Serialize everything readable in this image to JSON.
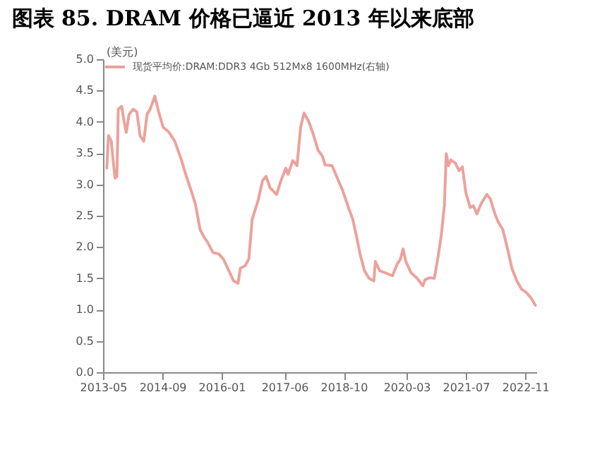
{
  "chart_data": {
    "type": "line",
    "title": "图表 85. DRAM 价格已逼近 2013 年以来底部",
    "ylabel": "(美元)",
    "x": [
      "2013-06-01",
      "2013-06-15",
      "2013-07-08",
      "2013-07-23",
      "2013-08-08",
      "2013-08-23",
      "2013-09-03",
      "2013-10-01",
      "2013-10-18",
      "2013-11-08",
      "2013-12-01",
      "2014-01-03",
      "2014-02-03",
      "2014-03-01",
      "2014-04-01",
      "2014-04-28",
      "2014-05-23",
      "2014-07-01",
      "2014-08-01",
      "2014-09-08",
      "2014-10-23",
      "2014-12-12",
      "2015-02-01",
      "2015-03-15",
      "2015-05-01",
      "2015-06-01",
      "2015-07-08",
      "2015-08-08",
      "2015-09-03",
      "2015-10-23",
      "2015-12-08",
      "2016-01-15",
      "2016-03-01",
      "2016-04-08",
      "2016-05-15",
      "2016-06-03",
      "2016-07-12",
      "2016-08-12",
      "2016-09-08",
      "2016-10-28",
      "2016-12-03",
      "2017-01-01",
      "2017-02-01",
      "2017-03-28",
      "2017-05-03",
      "2017-06-12",
      "2017-07-01",
      "2017-08-08",
      "2017-09-12",
      "2017-10-12",
      "2017-11-09",
      "2017-12-18",
      "2018-01-24",
      "2018-03-03",
      "2018-04-09",
      "2018-05-01",
      "2018-06-27",
      "2018-08-03",
      "2018-09-21",
      "2018-11-09",
      "2018-12-15",
      "2019-01-15",
      "2019-02-12",
      "2019-03-21",
      "2019-04-27",
      "2019-06-06",
      "2019-06-18",
      "2019-07-24",
      "2019-09-18",
      "2019-11-06",
      "2019-12-15",
      "2020-01-09",
      "2020-02-01",
      "2020-02-24",
      "2020-04-06",
      "2020-05-27",
      "2020-07-12",
      "2020-08-01",
      "2020-09-09",
      "2020-10-15",
      "2020-11-15",
      "2020-12-12",
      "2021-01-06",
      "2021-01-21",
      "2021-02-09",
      "2021-02-27",
      "2021-04-06",
      "2021-05-06",
      "2021-06-03",
      "2021-07-01",
      "2021-08-06",
      "2021-09-01",
      "2021-10-01",
      "2021-11-03",
      "2021-12-21",
      "2022-01-18",
      "2022-02-27",
      "2022-03-24",
      "2022-05-01",
      "2022-06-09",
      "2022-07-15",
      "2022-08-24",
      "2022-10-01",
      "2022-11-12",
      "2022-12-18",
      "2023-01-24"
    ],
    "series": [
      {
        "name": "现货平均价:DRAM:DDR3 4Gb 512Mx8 1600MHz(右轴)",
        "color": "#eba29c",
        "values": [
          3.26,
          3.78,
          3.69,
          3.38,
          3.1,
          3.13,
          4.2,
          4.25,
          4.04,
          3.83,
          4.12,
          4.2,
          4.16,
          3.78,
          3.69,
          4.12,
          4.2,
          4.41,
          4.16,
          3.91,
          3.84,
          3.69,
          3.41,
          3.14,
          2.87,
          2.67,
          2.28,
          2.16,
          2.09,
          1.91,
          1.89,
          1.81,
          1.62,
          1.46,
          1.42,
          1.66,
          1.7,
          1.81,
          2.44,
          2.75,
          3.06,
          3.13,
          2.95,
          2.84,
          3.06,
          3.26,
          3.16,
          3.38,
          3.3,
          3.92,
          4.14,
          4.0,
          3.8,
          3.55,
          3.45,
          3.31,
          3.3,
          3.13,
          2.91,
          2.63,
          2.44,
          2.16,
          1.89,
          1.62,
          1.5,
          1.46,
          1.77,
          1.62,
          1.58,
          1.54,
          1.73,
          1.8,
          1.97,
          1.77,
          1.59,
          1.5,
          1.38,
          1.48,
          1.51,
          1.5,
          1.85,
          2.2,
          2.67,
          3.49,
          3.3,
          3.39,
          3.34,
          3.22,
          3.28,
          2.87,
          2.63,
          2.66,
          2.53,
          2.69,
          2.84,
          2.77,
          2.52,
          2.4,
          2.28,
          1.97,
          1.66,
          1.46,
          1.33,
          1.27,
          1.19,
          1.07
        ]
      }
    ],
    "xlim": [
      "2013-05-01",
      "2023-02-01"
    ],
    "xticks": [
      "2013-05",
      "2014-09",
      "2016-01",
      "2017-06",
      "2018-10",
      "2020-03",
      "2021-07",
      "2022-11"
    ],
    "ylim": [
      0,
      5
    ],
    "yticks": [
      {
        "value": 0,
        "label": "0.0"
      },
      {
        "value": 0.5,
        "label": "0.5"
      },
      {
        "value": 1,
        "label": "1.0"
      },
      {
        "value": 1.5,
        "label": "1.5"
      },
      {
        "value": 2,
        "label": "2.0"
      },
      {
        "value": 2.5,
        "label": "2.5"
      },
      {
        "value": 3,
        "label": "3.0"
      },
      {
        "value": 3.5,
        "label": "3.5"
      },
      {
        "value": 4,
        "label": "4.0"
      },
      {
        "value": 4.5,
        "label": "4.5"
      },
      {
        "value": 5,
        "label": "5.0"
      }
    ],
    "grid": false,
    "legend": "top",
    "marker": "none",
    "line_style": "solid"
  }
}
